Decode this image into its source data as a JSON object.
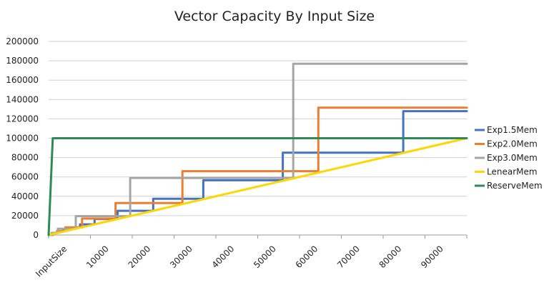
{
  "chart_data": {
    "type": "line",
    "title": "Vector Capacity By Input Size",
    "xlabel": "",
    "ylabel": "",
    "xlim": [
      0,
      100000
    ],
    "ylim": [
      0,
      200000
    ],
    "grid": true,
    "legend_position": "right",
    "x_tick_labels": [
      "InputSize",
      "10000",
      "20000",
      "30000",
      "40000",
      "50000",
      "60000",
      "70000",
      "80000",
      "90000"
    ],
    "y_tick_labels": [
      "0",
      "20000",
      "40000",
      "60000",
      "80000",
      "100000",
      "120000",
      "140000",
      "160000",
      "180000",
      "200000"
    ],
    "y_tick_values": [
      0,
      20000,
      40000,
      60000,
      80000,
      100000,
      120000,
      140000,
      160000,
      180000,
      200000
    ],
    "series": [
      {
        "name": "Exp1.5Mem",
        "color": "#4472c4",
        "x": [
          0,
          1000,
          1000,
          2000,
          2000,
          3500,
          3500,
          5000,
          5000,
          7500,
          7500,
          11000,
          11000,
          16500,
          16500,
          25000,
          25000,
          37000,
          37000,
          56000,
          56000,
          84800,
          84800,
          100000
        ],
        "y": [
          0,
          0,
          2000,
          2000,
          3500,
          3500,
          5000,
          5000,
          7500,
          7500,
          11000,
          11000,
          16500,
          16500,
          25000,
          25000,
          37500,
          37500,
          56500,
          56500,
          85000,
          85000,
          128000,
          128000
        ]
      },
      {
        "name": "Exp2.0Mem",
        "color": "#ed7d31",
        "x": [
          0,
          1000,
          1000,
          2000,
          2000,
          4000,
          4000,
          8000,
          8000,
          16000,
          16000,
          32000,
          32000,
          64500,
          64500,
          100000
        ],
        "y": [
          0,
          0,
          2000,
          2000,
          4000,
          4000,
          8000,
          8000,
          17000,
          17000,
          33000,
          33000,
          66000,
          66000,
          131500,
          131500
        ]
      },
      {
        "name": "Exp3.0Mem",
        "color": "#a5a5a5",
        "x": [
          0,
          700,
          700,
          2200,
          2200,
          6500,
          6500,
          19500,
          19500,
          58500,
          58500,
          100000
        ],
        "y": [
          0,
          0,
          2200,
          2200,
          6500,
          6500,
          19500,
          19500,
          59000,
          59000,
          177000,
          177000
        ]
      },
      {
        "name": "LenearMem",
        "color": "#ffd700",
        "x": [
          0,
          100000
        ],
        "y": [
          0,
          100000
        ]
      },
      {
        "name": "ReserveMem",
        "color": "#2e8b57",
        "x": [
          0,
          1000,
          100000
        ],
        "y": [
          0,
          100000,
          100000
        ]
      }
    ]
  }
}
